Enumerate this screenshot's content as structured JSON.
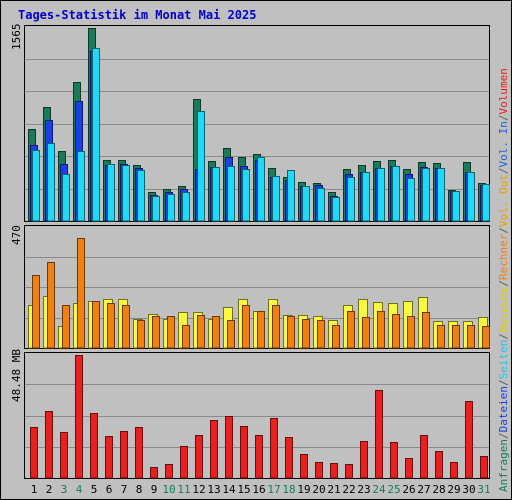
{
  "chart_data": {
    "type": "bar",
    "title": "Tages-Statistik im Monat Mai 2025",
    "categories": [
      "1",
      "2",
      "3",
      "4",
      "5",
      "6",
      "7",
      "8",
      "9",
      "10",
      "11",
      "12",
      "13",
      "14",
      "15",
      "16",
      "17",
      "18",
      "19",
      "20",
      "21",
      "22",
      "23",
      "24",
      "25",
      "26",
      "27",
      "28",
      "29",
      "30",
      "31"
    ],
    "weekend_days": [
      "3",
      "4",
      "10",
      "11",
      "17",
      "18",
      "24",
      "25",
      "31"
    ],
    "grid": true,
    "panels": [
      {
        "id": "top",
        "max_label": "1565",
        "ylim": [
          0,
          1565
        ],
        "series": [
          {
            "name": "Anfragen",
            "color": "#1a7a5a",
            "values": [
              750,
              925,
              565,
              1125,
              1565,
              495,
              495,
              457,
              232,
              262,
              287,
              987,
              487,
              595,
              520,
              545,
              427,
              358,
              320,
              308,
              232,
              420,
              457,
              487,
              495,
              420,
              480,
              470,
              255,
              480,
              308
            ]
          },
          {
            "name": "Dateien",
            "color": "#1a3fe8",
            "values": [
              615,
              815,
              465,
              975,
              1380,
              457,
              462,
              433,
              207,
              238,
              262,
              421,
              438,
              520,
              448,
              495,
              360,
              335,
              283,
              288,
              200,
              380,
              398,
              433,
              445,
              380,
              440,
              430,
              240,
              400,
              293
            ]
          },
          {
            "name": "Seiten",
            "color": "#20d8f8",
            "values": [
              578,
              632,
              378,
              565,
              1405,
              462,
              457,
              414,
              200,
              222,
              238,
              894,
              438,
              445,
              425,
              520,
              362,
              410,
              283,
              270,
              197,
              357,
              398,
              433,
              445,
              347,
              433,
              433,
              243,
              395,
              304
            ]
          }
        ]
      },
      {
        "id": "middle",
        "max_label": "470",
        "ylim": [
          0,
          470
        ],
        "series": [
          {
            "name": "Besuche",
            "color": "#f8f840",
            "values": [
              170,
              205,
              85,
              175,
              185,
              190,
              190,
              115,
              135,
              115,
              140,
              140,
              115,
              160,
              190,
              145,
              190,
              130,
              130,
              125,
              110,
              170,
              190,
              180,
              175,
              185,
              200,
              105,
              105,
              105,
              120
            ]
          },
          {
            "name": "Rechner",
            "color": "#f08010",
            "values": [
              285,
              335,
              170,
              430,
              185,
              175,
              170,
              110,
              125,
              125,
              90,
              130,
              125,
              110,
              170,
              145,
              170,
              125,
              115,
              110,
              90,
              145,
              120,
              145,
              135,
              125,
              140,
              90,
              90,
              90,
              85
            ]
          }
        ]
      },
      {
        "id": "bottom",
        "max_label": "48.48 MB",
        "ylim": [
          0,
          48.48
        ],
        "series": [
          {
            "name": "Volumen",
            "color": "#e82020",
            "values": [
              20.0,
              26.5,
              18.2,
              48.48,
              25.5,
              16.4,
              18.5,
              20.0,
              4.5,
              5.5,
              12.5,
              17.0,
              23.0,
              24.5,
              20.5,
              17.0,
              23.5,
              16.0,
              9.5,
              6.5,
              6.0,
              5.5,
              14.5,
              34.5,
              14.0,
              8.0,
              17.0,
              10.5,
              6.5,
              30.5,
              8.5
            ]
          }
        ]
      }
    ],
    "legend": {
      "placement": "right (vertical)",
      "entries": [
        {
          "text": "Anfragen",
          "color": "#1a7a5a"
        },
        {
          "text": "/",
          "color": "#606060"
        },
        {
          "text": "Dateien",
          "color": "#1a3fe8"
        },
        {
          "text": "/",
          "color": "#606060"
        },
        {
          "text": "Seiten",
          "color": "#20c8e8"
        },
        {
          "text": "/",
          "color": "#606060"
        },
        {
          "text": "Besuche",
          "color": "#d8d000"
        },
        {
          "text": "/",
          "color": "#606060"
        },
        {
          "text": "Rechner",
          "color": "#f08010"
        },
        {
          "text": "/",
          "color": "#606060"
        },
        {
          "text": "Vol. Out",
          "color": "#e8a000"
        },
        {
          "text": "/",
          "color": "#606060"
        },
        {
          "text": "Vol. In",
          "color": "#2060e0"
        },
        {
          "text": "/",
          "color": "#606060"
        },
        {
          "text": "Volumen",
          "color": "#e82020"
        }
      ]
    },
    "colors": {
      "title": "#0000d0",
      "background": "#c0c0c0",
      "weekday_label": "#000000",
      "weekend_label": "#1a7a5a"
    }
  }
}
